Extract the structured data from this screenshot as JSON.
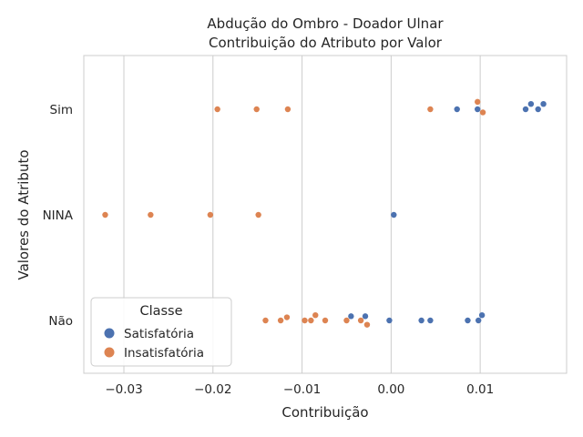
{
  "chart_data": {
    "type": "scatter",
    "title_line1": "Abdução do Ombro - Doador Ulnar",
    "title_line2": "Contribuição do Atributo por Valor",
    "xlabel": "Contribuição",
    "ylabel": "Valores do Atributo",
    "xlim": [
      -0.0345,
      0.0197
    ],
    "x_ticks": [
      -0.03,
      -0.02,
      -0.01,
      0.0,
      0.01
    ],
    "x_tick_labels": [
      "−0.03",
      "−0.02",
      "−0.01",
      "0.00",
      "0.01"
    ],
    "categories": [
      "Sim",
      "NINA",
      "Não"
    ],
    "grid": "vertical",
    "legend": {
      "title": "Classe",
      "placement": "lower-left"
    },
    "colors": {
      "Satisfatória": "#4c72b0",
      "Insatisfatória": "#dd8452",
      "grid": "#cccccc",
      "frame": "#cccccc"
    },
    "series": [
      {
        "name": "Satisfatória",
        "points": [
          {
            "category": "Sim",
            "x": 0.0074,
            "jitter": 0.0
          },
          {
            "category": "Sim",
            "x": 0.0097,
            "jitter": 0.0
          },
          {
            "category": "Sim",
            "x": 0.0151,
            "jitter": 0.0
          },
          {
            "category": "Sim",
            "x": 0.0157,
            "jitter": 0.05
          },
          {
            "category": "Sim",
            "x": 0.0165,
            "jitter": 0.0
          },
          {
            "category": "Sim",
            "x": 0.0171,
            "jitter": 0.05
          },
          {
            "category": "NINA",
            "x": 0.0003,
            "jitter": 0.0
          },
          {
            "category": "Não",
            "x": -0.0045,
            "jitter": 0.04
          },
          {
            "category": "Não",
            "x": -0.0029,
            "jitter": 0.04
          },
          {
            "category": "Não",
            "x": -0.0002,
            "jitter": 0.0
          },
          {
            "category": "Não",
            "x": 0.0034,
            "jitter": 0.0
          },
          {
            "category": "Não",
            "x": 0.0044,
            "jitter": 0.0
          },
          {
            "category": "Não",
            "x": 0.0086,
            "jitter": 0.0
          },
          {
            "category": "Não",
            "x": 0.0098,
            "jitter": 0.0
          },
          {
            "category": "Não",
            "x": 0.0102,
            "jitter": 0.05
          }
        ]
      },
      {
        "name": "Insatisfatória",
        "points": [
          {
            "category": "Sim",
            "x": -0.0195,
            "jitter": 0.0
          },
          {
            "category": "Sim",
            "x": -0.0151,
            "jitter": 0.0
          },
          {
            "category": "Sim",
            "x": -0.0116,
            "jitter": 0.0
          },
          {
            "category": "Sim",
            "x": 0.0044,
            "jitter": 0.0
          },
          {
            "category": "Sim",
            "x": 0.0097,
            "jitter": 0.07
          },
          {
            "category": "Sim",
            "x": 0.0103,
            "jitter": -0.03
          },
          {
            "category": "NINA",
            "x": -0.0321,
            "jitter": 0.0
          },
          {
            "category": "NINA",
            "x": -0.027,
            "jitter": 0.0
          },
          {
            "category": "NINA",
            "x": -0.0203,
            "jitter": 0.0
          },
          {
            "category": "NINA",
            "x": -0.0149,
            "jitter": 0.0
          },
          {
            "category": "Não",
            "x": -0.0141,
            "jitter": 0.0
          },
          {
            "category": "Não",
            "x": -0.0124,
            "jitter": 0.0
          },
          {
            "category": "Não",
            "x": -0.0117,
            "jitter": 0.03
          },
          {
            "category": "Não",
            "x": -0.0097,
            "jitter": 0.0
          },
          {
            "category": "Não",
            "x": -0.009,
            "jitter": 0.0
          },
          {
            "category": "Não",
            "x": -0.0085,
            "jitter": 0.05
          },
          {
            "category": "Não",
            "x": -0.0074,
            "jitter": 0.0
          },
          {
            "category": "Não",
            "x": -0.005,
            "jitter": 0.0
          },
          {
            "category": "Não",
            "x": -0.0034,
            "jitter": 0.0
          },
          {
            "category": "Não",
            "x": -0.0027,
            "jitter": -0.04
          }
        ]
      }
    ]
  }
}
